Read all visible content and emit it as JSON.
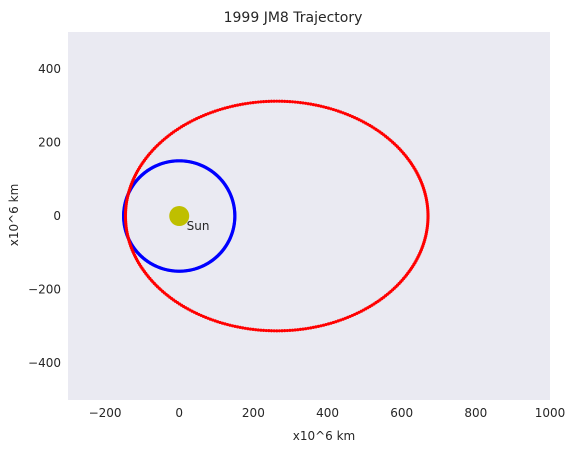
{
  "chart_data": {
    "type": "scatter",
    "title": "1999 JM8 Trajectory",
    "xlabel": "x10^6 km",
    "ylabel": "x10^6 km",
    "xlim": [
      -300,
      1000
    ],
    "ylim": [
      -500,
      500
    ],
    "xticks": [
      -200,
      0,
      200,
      400,
      600,
      800,
      1000
    ],
    "yticks": [
      -400,
      -200,
      0,
      200,
      400
    ],
    "grid": false,
    "background": "#eaeaf2",
    "series": [
      {
        "color": "#0000ff",
        "orbit": {
          "center": [
            0,
            0
          ],
          "semi_major": 150,
          "semi_minor": 150
        },
        "points": 360
      },
      {
        "color": "#ff0000",
        "orbit": {
          "center": [
            263,
            0
          ],
          "semi_major": 408,
          "semi_minor": 312
        },
        "points": 360
      }
    ],
    "sun": {
      "x": 0,
      "y": 0,
      "color": "#bfbf00"
    },
    "annotations": [
      {
        "text": "Sun",
        "x": 20,
        "y": -38
      }
    ]
  }
}
